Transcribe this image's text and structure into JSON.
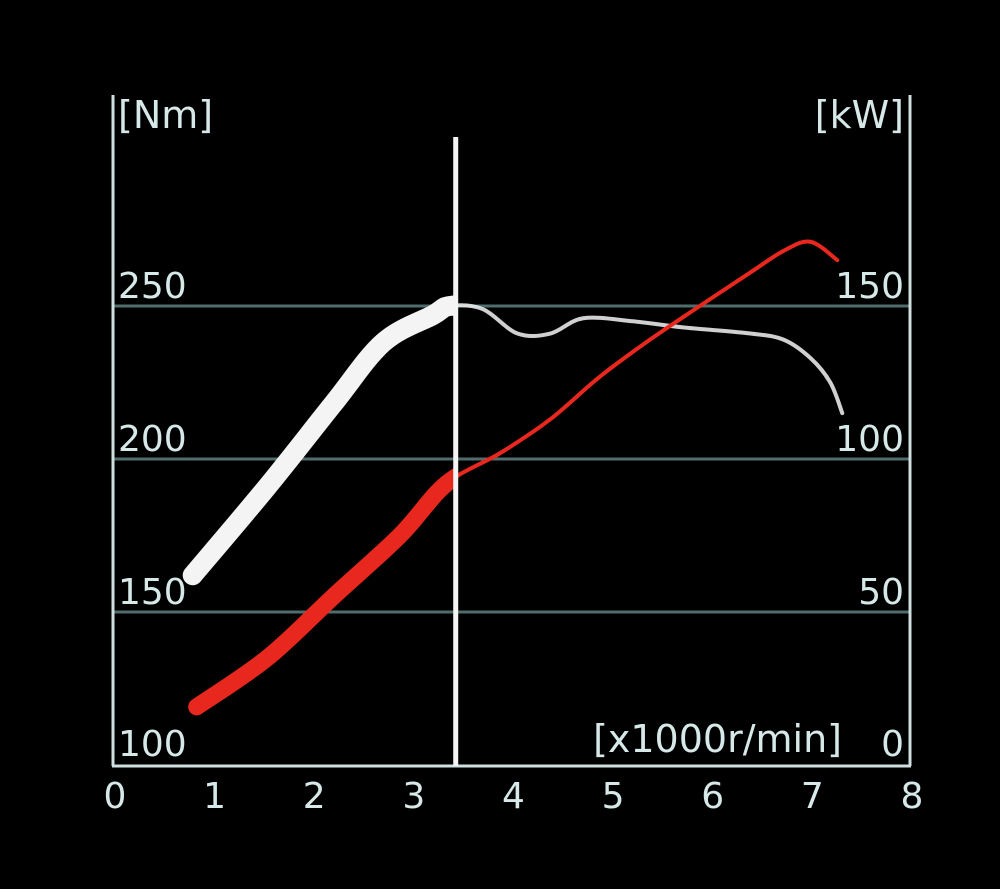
{
  "chart_data": {
    "type": "line",
    "xlabel": "[x1000r/min]",
    "ylabel_left": "[Nm]",
    "ylabel_right": "[kW]",
    "xlim": [
      0,
      8
    ],
    "ylim_left": [
      100,
      300
    ],
    "ylim_right": [
      0,
      200
    ],
    "x_ticks": [
      "0",
      "1",
      "2",
      "3",
      "4",
      "5",
      "6",
      "7",
      "8"
    ],
    "y_ticks_left": [
      "100",
      "150",
      "200",
      "250"
    ],
    "y_ticks_right": [
      "0",
      "50",
      "100",
      "150"
    ],
    "grid": true,
    "marker_rpm": 3.42,
    "series": [
      {
        "axis": "left",
        "color": "#f4f4f4",
        "x": [
          0.78,
          1.53,
          2.19,
          2.69,
          3.19,
          3.36,
          3.69,
          4.04,
          4.37,
          4.7,
          5.2,
          5.7,
          6.38,
          6.71,
          6.98,
          7.18,
          7.3
        ],
        "y": [
          162,
          191,
          218,
          238,
          247,
          250,
          249,
          241,
          241,
          246,
          245,
          243,
          241,
          239,
          233,
          225,
          215
        ]
      },
      {
        "axis": "right",
        "color": "#e8281e",
        "x": [
          0.82,
          1.53,
          2.19,
          2.86,
          3.33,
          3.87,
          4.37,
          4.87,
          5.37,
          5.87,
          6.38,
          6.71,
          6.98,
          7.25
        ],
        "y": [
          19,
          35,
          55,
          75,
          92,
          102,
          113,
          127,
          139,
          150,
          161,
          168,
          171,
          165
        ]
      }
    ]
  }
}
